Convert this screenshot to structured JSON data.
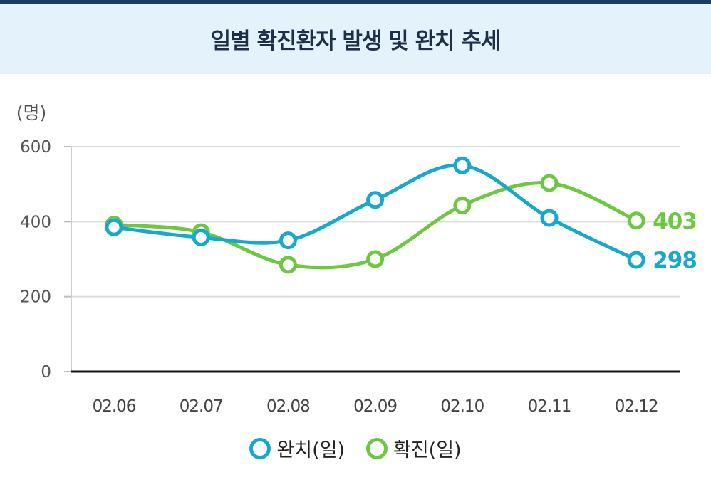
{
  "title": "일별 확진환자 발생 및 완치 추세",
  "chart_data": {
    "type": "line",
    "unit_label": "(명)",
    "categories": [
      "02.06",
      "02.07",
      "02.08",
      "02.09",
      "02.10",
      "02.11",
      "02.12"
    ],
    "ylim": [
      0,
      600
    ],
    "yticks": [
      0,
      200,
      400,
      600
    ],
    "grid": true,
    "legend_position": "bottom",
    "series": [
      {
        "name": "완치(일)",
        "color": "#16a8cf",
        "values": [
          385,
          358,
          350,
          458,
          550,
          410,
          298
        ],
        "end_label": "298"
      },
      {
        "name": "확진(일)",
        "color": "#6cc93f",
        "values": [
          392,
          372,
          285,
          300,
          443,
          503,
          403
        ],
        "end_label": "403"
      }
    ]
  }
}
